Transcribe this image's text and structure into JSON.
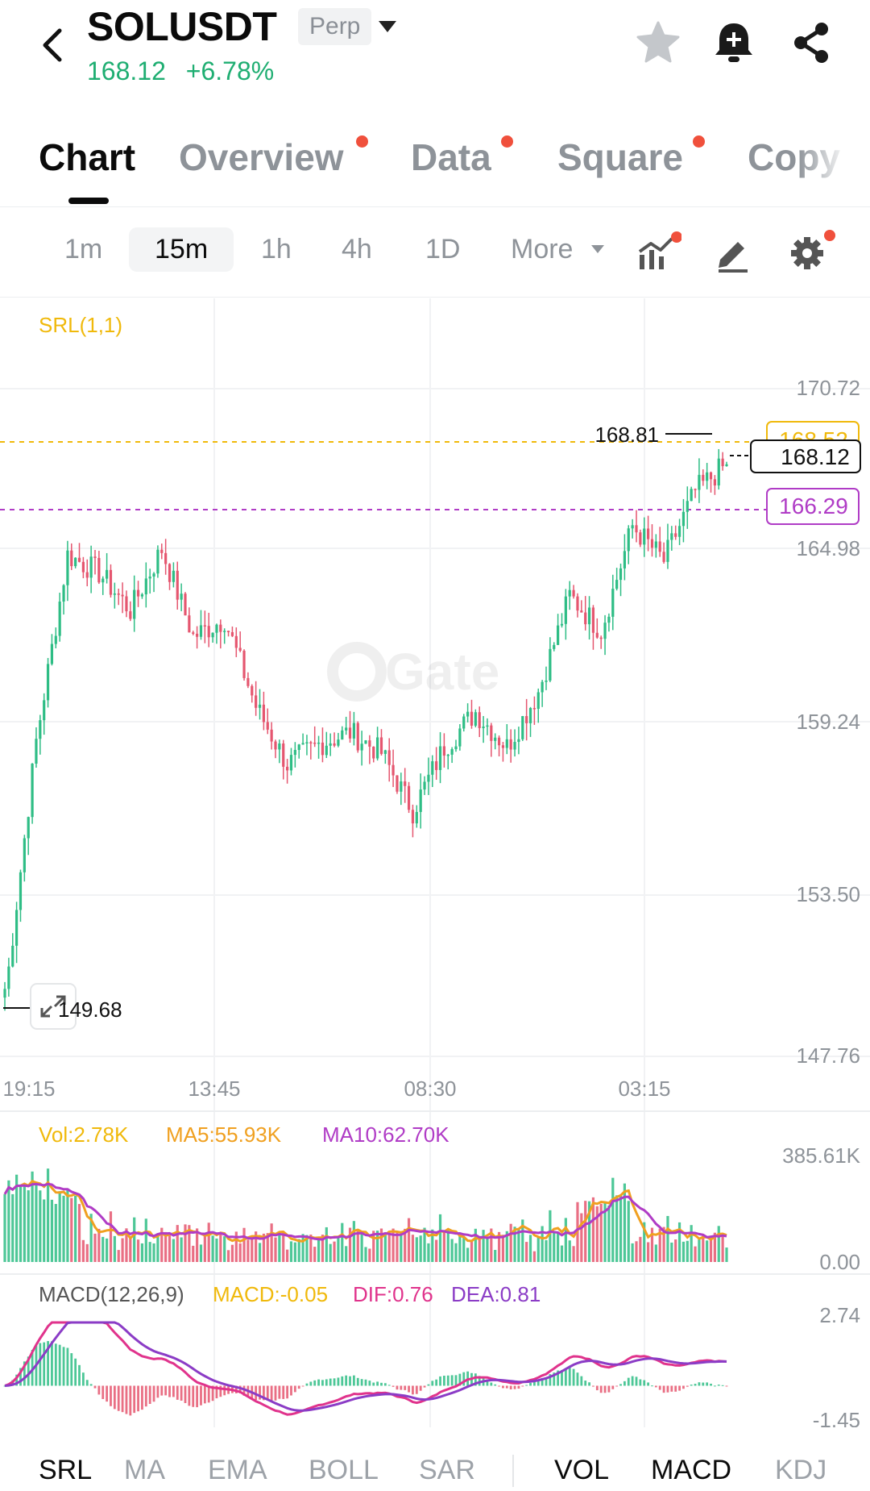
{
  "header": {
    "symbol": "SOLUSDT",
    "badge": "Perp",
    "last_price": "168.12",
    "change_pct": "+6.78%",
    "price_color": "#1fae72",
    "icons": [
      "back-arrow-icon",
      "star-icon",
      "alarm-bell-icon",
      "share-icon"
    ]
  },
  "tabs": [
    {
      "label": "Chart",
      "active": true,
      "dot": false
    },
    {
      "label": "Overview",
      "active": false,
      "dot": true
    },
    {
      "label": "Data",
      "active": false,
      "dot": true
    },
    {
      "label": "Square",
      "active": false,
      "dot": true
    },
    {
      "label": "Copy",
      "active": false,
      "dot": false
    }
  ],
  "intervals": [
    {
      "label": "1m",
      "active": false
    },
    {
      "label": "15m",
      "active": true
    },
    {
      "label": "1h",
      "active": false
    },
    {
      "label": "4h",
      "active": false
    },
    {
      "label": "1D",
      "active": false
    },
    {
      "label": "More",
      "active": false
    }
  ],
  "toolbar_icons": [
    "indicators-icon",
    "draw-pencil-icon",
    "settings-gear-icon"
  ],
  "price_chart": {
    "indicator_label": "SRL(1,1)",
    "watermark": "Gate",
    "price_axis": [
      "170.72",
      "164.98",
      "159.24",
      "153.50",
      "147.76"
    ],
    "time_axis": [
      "19:15",
      "13:45",
      "08:30",
      "03:15"
    ],
    "high_label": "168.81",
    "low_label": "149.68",
    "current_price_tag": "168.12",
    "srl_upper_tag": "168.52",
    "srl_lower_tag": "166.29",
    "up_color": "#2ebd85",
    "down_color": "#e5566f",
    "srl_upper_color": "#f0b90b",
    "srl_lower_color": "#b03cc6"
  },
  "volume_panel": {
    "vol_label": "Vol:2.78K",
    "ma5_label": "MA5:55.93K",
    "ma10_label": "MA10:62.70K",
    "axis_top": "385.61K",
    "axis_bottom": "0.00",
    "vol_color": "#f0b90b",
    "ma5_color": "#f0a020",
    "ma10_color": "#b03cc6"
  },
  "macd_panel": {
    "title": "MACD(12,26,9)",
    "macd_label": "MACD:-0.05",
    "dif_label": "DIF:0.76",
    "dea_label": "DEA:0.81",
    "axis_top": "2.74",
    "axis_bottom": "-1.45",
    "dif_color": "#e0338c",
    "dea_color": "#8b3cc6"
  },
  "bottom_tabs": [
    {
      "label": "SRL",
      "active": true
    },
    {
      "label": "MA",
      "active": false
    },
    {
      "label": "EMA",
      "active": false
    },
    {
      "label": "BOLL",
      "active": false
    },
    {
      "label": "SAR",
      "active": false
    },
    {
      "label": "VOL",
      "active": true
    },
    {
      "label": "MACD",
      "active": true
    },
    {
      "label": "KDJ",
      "active": false
    }
  ],
  "chart_data": {
    "type": "candlestick",
    "title": "SOLUSDT Perp 15m",
    "y_axis_range": [
      147.76,
      170.72
    ],
    "x_tick_labels": [
      "19:15",
      "13:45",
      "08:30",
      "03:15"
    ],
    "close_path_approx": [
      {
        "t": 0,
        "price": 149.68
      },
      {
        "t": 8,
        "price": 158.6
      },
      {
        "t": 16,
        "price": 165.0
      },
      {
        "t": 24,
        "price": 164.4
      },
      {
        "t": 32,
        "price": 163.1
      },
      {
        "t": 40,
        "price": 165.2
      },
      {
        "t": 48,
        "price": 162.2
      },
      {
        "t": 56,
        "price": 162.8
      },
      {
        "t": 64,
        "price": 159.8
      },
      {
        "t": 72,
        "price": 157.8
      },
      {
        "t": 80,
        "price": 158.5
      },
      {
        "t": 88,
        "price": 158.9
      },
      {
        "t": 96,
        "price": 158.2
      },
      {
        "t": 104,
        "price": 156.2
      },
      {
        "t": 112,
        "price": 158.4
      },
      {
        "t": 120,
        "price": 159.6
      },
      {
        "t": 128,
        "price": 158.4
      },
      {
        "t": 136,
        "price": 160.3
      },
      {
        "t": 144,
        "price": 163.6
      },
      {
        "t": 152,
        "price": 162.4
      },
      {
        "t": 160,
        "price": 166.0
      },
      {
        "t": 168,
        "price": 164.8
      },
      {
        "t": 176,
        "price": 167.2
      },
      {
        "t": 184,
        "price": 168.12
      }
    ],
    "high": 168.81,
    "low": 149.68,
    "last": 168.12,
    "srl_upper": 168.52,
    "srl_lower": 166.29
  }
}
